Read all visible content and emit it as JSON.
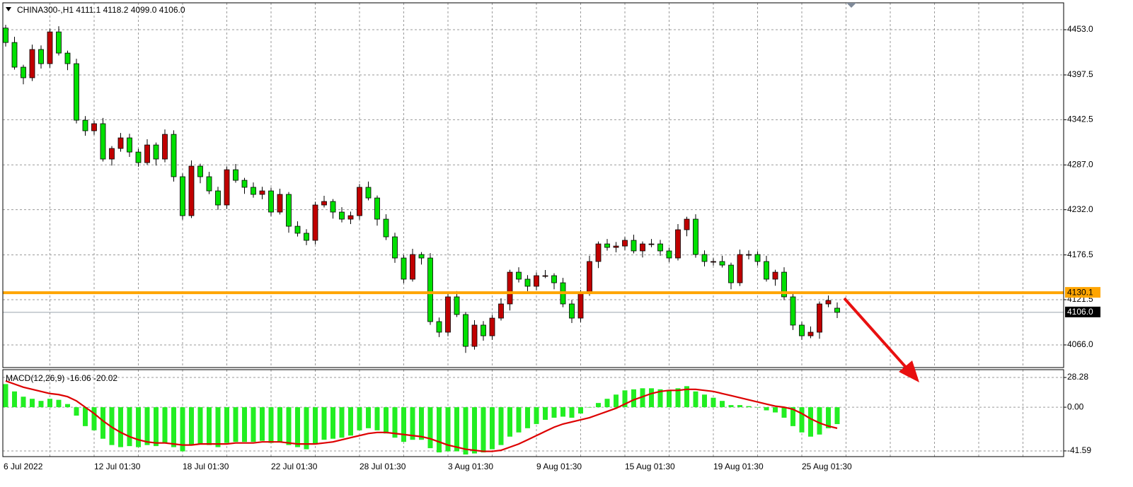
{
  "chart_data": [
    {
      "type": "candlestick",
      "title": "CHINA300-,H1  4111.1 4118.2 4099.0 4106.0",
      "x": [
        "6 Jul 2022",
        null,
        null,
        null,
        null,
        null,
        null,
        null,
        null,
        null,
        "12 Jul 01:30",
        null,
        null,
        null,
        null,
        null,
        null,
        null,
        null,
        null,
        "18 Jul 01:30",
        null,
        null,
        null,
        null,
        null,
        null,
        null,
        null,
        null,
        "22 Jul 01:30",
        null,
        null,
        null,
        null,
        null,
        null,
        null,
        null,
        null,
        "28 Jul 01:30",
        null,
        null,
        null,
        null,
        null,
        null,
        null,
        null,
        null,
        "3 Aug 01:30",
        null,
        null,
        null,
        null,
        null,
        null,
        null,
        null,
        null,
        "9 Aug 01:30",
        null,
        null,
        null,
        null,
        null,
        null,
        null,
        null,
        null,
        "15 Aug 01:30",
        null,
        null,
        null,
        null,
        null,
        null,
        null,
        null,
        null,
        "19 Aug 01:30",
        null,
        null,
        null,
        null,
        null,
        null,
        null,
        null,
        null,
        "25 Aug 01:30",
        null,
        null,
        null,
        null
      ],
      "open": [
        4455.0,
        4437.3,
        4407.0,
        4394.0,
        4428.7,
        4411.3,
        4450.3,
        4424.3,
        4411.3,
        4341.9,
        4328.9,
        4337.6,
        4294.2,
        4307.2,
        4320.2,
        4302.8,
        4289.8,
        4311.5,
        4294.2,
        4324.5,
        4272.5,
        4224.7,
        4285.5,
        4272.5,
        4255.1,
        4237.8,
        4281.1,
        4268.1,
        4259.5,
        4250.8,
        4255.1,
        4229.1,
        4250.8,
        4211.7,
        4203.1,
        4194.4,
        4237.8,
        4242.1,
        4229.1,
        4220.4,
        4224.7,
        4259.5,
        4246.4,
        4220.4,
        4198.7,
        4172.7,
        4146.7,
        4177.0,
        4172.7,
        4094.6,
        4081.6,
        4125.0,
        4103.3,
        4064.2,
        4090.3,
        4077.2,
        4098.9,
        4116.3,
        4155.3,
        4146.7,
        4138.0,
        4151.0,
        4151.0,
        4142.3,
        4116.3,
        4098.9,
        4129.3,
        4168.4,
        4190.0,
        4185.7,
        4187.4,
        4194.4,
        4181.4,
        4190.0,
        4190.0,
        4181.4,
        4172.7,
        4207.4,
        4220.4,
        4177.0,
        4168.4,
        4168.4,
        4164.0,
        4142.3,
        4177.0,
        4177.0,
        4168.4,
        4146.7,
        4155.3,
        4125.0,
        4090.3,
        4077.2,
        4081.6,
        4116.3,
        4111.1
      ],
      "high": [
        4459.0,
        4444.3,
        4410.0,
        4434.7,
        4433.7,
        4454.3,
        4457.3,
        4427.3,
        4417.3,
        4346.9,
        4341.6,
        4344.6,
        4310.2,
        4326.2,
        4325.2,
        4306.8,
        4318.5,
        4314.5,
        4330.5,
        4329.5,
        4276.5,
        4292.5,
        4288.5,
        4278.5,
        4260.1,
        4285.1,
        4288.1,
        4271.1,
        4265.5,
        4260.1,
        4259.1,
        4257.8,
        4253.8,
        4217.7,
        4208.1,
        4241.8,
        4249.1,
        4245.1,
        4235.1,
        4229.7,
        4263.5,
        4266.5,
        4249.4,
        4226.4,
        4203.7,
        4176.7,
        4184.0,
        4180.0,
        4178.7,
        4099.6,
        4129.0,
        4132.0,
        4106.3,
        4096.3,
        4095.3,
        4102.9,
        4123.3,
        4158.3,
        4161.3,
        4151.7,
        4155.0,
        4158.0,
        4154.0,
        4148.3,
        4121.3,
        4133.3,
        4175.4,
        4193.0,
        4196.0,
        4192.4,
        4198.4,
        4201.4,
        4193.0,
        4196.0,
        4195.0,
        4185.4,
        4214.4,
        4223.4,
        4226.4,
        4182.0,
        4172.4,
        4175.4,
        4167.0,
        4183.0,
        4182.0,
        4181.0,
        4175.4,
        4158.3,
        4161.3,
        4130.0,
        4094.3,
        4088.6,
        4119.3,
        4126.6,
        4118.2
      ],
      "low": [
        4432.3,
        4404.0,
        4386.0,
        4390.0,
        4405.3,
        4406.3,
        4421.3,
        4403.3,
        4337.9,
        4322.9,
        4323.9,
        4291.2,
        4286.2,
        4303.2,
        4296.8,
        4284.8,
        4286.8,
        4286.2,
        4290.2,
        4266.5,
        4219.7,
        4221.7,
        4264.5,
        4251.1,
        4231.8,
        4232.8,
        4265.1,
        4251.5,
        4246.8,
        4244.8,
        4224.1,
        4226.1,
        4203.7,
        4199.1,
        4188.4,
        4189.4,
        4234.8,
        4221.1,
        4216.4,
        4214.4,
        4219.7,
        4243.4,
        4212.4,
        4194.7,
        4166.7,
        4141.7,
        4143.7,
        4164.7,
        4090.6,
        4075.6,
        4076.6,
        4100.3,
        4056.2,
        4060.2,
        4071.2,
        4072.2,
        4095.9,
        4108.3,
        4142.7,
        4132.0,
        4133.0,
        4148.0,
        4134.3,
        4112.3,
        4092.9,
        4093.9,
        4126.3,
        4160.4,
        4181.7,
        4179.7,
        4182.4,
        4178.4,
        4173.4,
        4186.0,
        4175.4,
        4167.7,
        4169.7,
        4199.4,
        4173.0,
        4162.4,
        4163.4,
        4161.0,
        4134.3,
        4138.3,
        4171.0,
        4163.4,
        4143.7,
        4138.7,
        4121.0,
        4084.3,
        4072.2,
        4074.2,
        4073.6,
        4112.3,
        4099.0
      ],
      "close": [
        4437.3,
        4407.0,
        4394.0,
        4428.7,
        4411.3,
        4450.3,
        4424.3,
        4411.3,
        4341.9,
        4328.9,
        4337.6,
        4294.2,
        4307.2,
        4320.2,
        4302.8,
        4289.8,
        4311.5,
        4294.2,
        4324.5,
        4272.5,
        4224.7,
        4285.5,
        4272.5,
        4255.1,
        4237.8,
        4281.1,
        4268.1,
        4259.5,
        4250.8,
        4255.1,
        4229.1,
        4250.8,
        4211.7,
        4203.1,
        4194.4,
        4237.8,
        4242.1,
        4229.1,
        4220.4,
        4224.7,
        4259.5,
        4246.4,
        4220.4,
        4198.7,
        4172.7,
        4146.7,
        4177.0,
        4172.7,
        4094.6,
        4081.6,
        4125.0,
        4103.3,
        4064.2,
        4090.3,
        4077.2,
        4098.9,
        4116.3,
        4155.3,
        4146.7,
        4138.0,
        4151.0,
        4151.0,
        4142.3,
        4116.3,
        4098.9,
        4129.3,
        4168.4,
        4190.0,
        4185.7,
        4187.4,
        4194.4,
        4181.4,
        4190.0,
        4190.0,
        4181.4,
        4172.7,
        4207.4,
        4220.4,
        4177.0,
        4168.4,
        4168.4,
        4164.0,
        4142.3,
        4177.0,
        4177.0,
        4168.4,
        4146.7,
        4155.3,
        4125.0,
        4090.3,
        4077.2,
        4081.6,
        4116.3,
        4120.6,
        4106.0
      ],
      "up_color": "#c00000",
      "down_color": "#00e000",
      "ylim": [
        4038.2,
        4486.0
      ],
      "yticks": [
        {
          "value": 4453.0,
          "label": "4453.0"
        },
        4397.5,
        4342.5,
        {
          "value": 4287.0,
          "label": "4287.0"
        },
        {
          "value": 4232.0,
          "label": "4232.0"
        },
        4176.5,
        4121.5,
        {
          "value": 4066.0,
          "label": "4066.0"
        }
      ],
      "grid": true,
      "hline": 4130.1,
      "hline_color": "#ffa500",
      "last_price": {
        "value": 4106.0,
        "label": "4106.0"
      }
    },
    {
      "type": "macd",
      "title": "MACD(12,26,9) -16.06 -20.02",
      "histogram": {
        "color": "#22ee22",
        "values": [
          22,
          15,
          10,
          8,
          6,
          8,
          7,
          3,
          -8,
          -18,
          -22,
          -30,
          -36,
          -38,
          -37,
          -38,
          -36,
          -37,
          -34,
          -38,
          -42,
          -36,
          -35,
          -36,
          -38,
          -34,
          -33,
          -33,
          -33,
          -32,
          -34,
          -33,
          -36,
          -38,
          -40,
          -35,
          -31,
          -30,
          -29,
          -27,
          -22,
          -20,
          -22,
          -25,
          -29,
          -33,
          -31,
          -31,
          -39,
          -43,
          -42,
          -42,
          -45,
          -44,
          -43,
          -40,
          -36,
          -28,
          -24,
          -20,
          -16,
          -12,
          -10,
          -9,
          -10,
          -6,
          0,
          4,
          8,
          12,
          16,
          17,
          18,
          18,
          17,
          16,
          18,
          20,
          15,
          12,
          9,
          6,
          2,
          2,
          1,
          0,
          -3,
          -5,
          -10,
          -18,
          -24,
          -28,
          -26,
          -20,
          -16.06
        ]
      },
      "signal": {
        "color": "#dd0000",
        "values": [
          25,
          22,
          19,
          17,
          15,
          13,
          12,
          10,
          6,
          0,
          -6,
          -13,
          -19,
          -24,
          -28,
          -31,
          -33,
          -34,
          -34,
          -35,
          -36,
          -36,
          -35,
          -35,
          -35,
          -35,
          -34,
          -34,
          -34,
          -33,
          -33,
          -33,
          -34,
          -35,
          -35,
          -35,
          -34,
          -33,
          -31,
          -29,
          -27,
          -25,
          -24,
          -24,
          -25,
          -26,
          -27,
          -28,
          -30,
          -33,
          -36,
          -38,
          -40,
          -41,
          -42,
          -42,
          -41,
          -38,
          -35,
          -31,
          -27,
          -23,
          -19,
          -16,
          -14,
          -12,
          -10,
          -7,
          -4,
          -1,
          3,
          7,
          10,
          13,
          15,
          16,
          16,
          17,
          17,
          16,
          15,
          13,
          11,
          9,
          7,
          5,
          3,
          1,
          0,
          -2,
          -6,
          -11,
          -15,
          -18,
          -20.02
        ]
      },
      "ylim": [
        -47.0,
        35.7
      ],
      "yticks": [
        28.28,
        {
          "value": 0,
          "label": "0.00"
        },
        -41.59
      ],
      "grid": true
    }
  ]
}
